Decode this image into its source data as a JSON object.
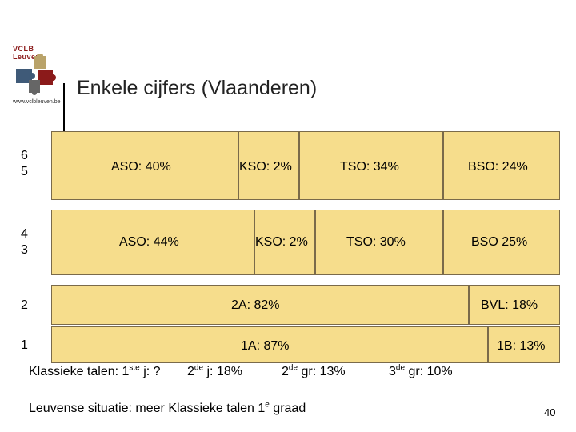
{
  "logo": {
    "name": "VCLB Leuven",
    "url": "www.vclbleuven.be"
  },
  "title": "Enkele cijfers (Vlaanderen)",
  "rows": {
    "r65": {
      "label_top": "6",
      "label_bottom": "5",
      "aso": "ASO: 40%",
      "kso": "KSO: 2%",
      "tso": "TSO: 34%",
      "bso": "BSO: 24%"
    },
    "r43": {
      "label_top": "4",
      "label_bottom": "3",
      "aso": "ASO: 44%",
      "kso": "KSO: 2%",
      "tso": "TSO: 30%",
      "bso": "BSO 25%"
    },
    "r2": {
      "label": "2",
      "main": "2A: 82%",
      "side": "BVL: 18%"
    },
    "r1": {
      "label": "1",
      "main": "1A: 87%",
      "side": "1B: 13%"
    }
  },
  "footnotes": {
    "klassieke_1": {
      "pre": "Klassieke talen: 1",
      "sup": "ste",
      "post": " j: ?"
    },
    "klassieke_2": {
      "pre": "2",
      "sup": "de",
      "post": " j: 18%"
    },
    "gr2": {
      "pre": "2",
      "sup": "de",
      "post": " gr: 13%"
    },
    "gr3": {
      "pre": "3",
      "sup": "de",
      "post": " gr: 10%"
    }
  },
  "leuven": {
    "pre": "Leuvense situatie: meer Klassieke talen 1",
    "sup": "e",
    "post": " graad"
  },
  "page_number": "40",
  "colors": {
    "box_fill": "#f6dd8c",
    "box_border": "#7a6a4a"
  }
}
